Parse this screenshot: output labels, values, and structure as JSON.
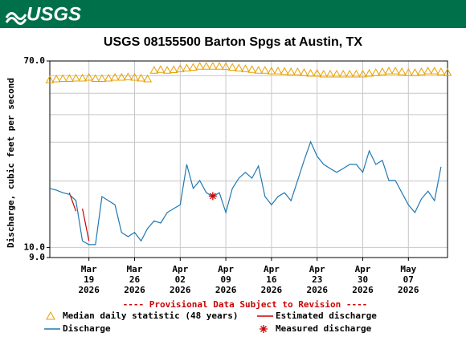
{
  "logo": "USGS",
  "chart_data": {
    "type": "line",
    "title": "USGS 08155500 Barton Spgs at Austin, TX",
    "y_label": "Discharge, cubic feet per second",
    "note": "---- Provisional Data Subject to Revision ----",
    "ylog": true,
    "grid": true,
    "ylim": [
      9,
      70
    ],
    "yticks": [
      {
        "value": 9,
        "label": "9.0"
      },
      {
        "value": 10,
        "label": "10.0"
      },
      {
        "value": 70,
        "label": "70.0"
      }
    ],
    "ygrid": [
      20,
      30,
      40,
      50,
      60
    ],
    "xlim": [
      "2026-03-13",
      "2026-05-13"
    ],
    "xticks": [
      {
        "value": "2026-03-19",
        "label": [
          "Mar",
          "19",
          "2026"
        ]
      },
      {
        "value": "2026-03-26",
        "label": [
          "Mar",
          "26",
          "2026"
        ]
      },
      {
        "value": "2026-04-02",
        "label": [
          "Apr",
          "02",
          "2026"
        ]
      },
      {
        "value": "2026-04-09",
        "label": [
          "Apr",
          "09",
          "2026"
        ]
      },
      {
        "value": "2026-04-16",
        "label": [
          "Apr",
          "16",
          "2026"
        ]
      },
      {
        "value": "2026-04-23",
        "label": [
          "Apr",
          "23",
          "2026"
        ]
      },
      {
        "value": "2026-04-30",
        "label": [
          "Apr",
          "30",
          "2026"
        ]
      },
      {
        "value": "2026-05-07",
        "label": [
          "May",
          "07",
          "2026"
        ]
      }
    ],
    "series": [
      {
        "name": "Median daily statistic (48 years)",
        "color": "#e8a000",
        "style": "triangle",
        "x": [
          "2026-03-13",
          "2026-03-14",
          "2026-03-15",
          "2026-03-16",
          "2026-03-17",
          "2026-03-18",
          "2026-03-19",
          "2026-03-20",
          "2026-03-21",
          "2026-03-22",
          "2026-03-23",
          "2026-03-24",
          "2026-03-25",
          "2026-03-26",
          "2026-03-27",
          "2026-03-28",
          "2026-03-29",
          "2026-03-30",
          "2026-03-31",
          "2026-04-01",
          "2026-04-02",
          "2026-04-03",
          "2026-04-04",
          "2026-04-05",
          "2026-04-06",
          "2026-04-07",
          "2026-04-08",
          "2026-04-09",
          "2026-04-10",
          "2026-04-11",
          "2026-04-12",
          "2026-04-13",
          "2026-04-14",
          "2026-04-15",
          "2026-04-16",
          "2026-04-17",
          "2026-04-18",
          "2026-04-19",
          "2026-04-20",
          "2026-04-21",
          "2026-04-22",
          "2026-04-23",
          "2026-04-24",
          "2026-04-25",
          "2026-04-26",
          "2026-04-27",
          "2026-04-28",
          "2026-04-29",
          "2026-04-30",
          "2026-05-01",
          "2026-05-02",
          "2026-05-03",
          "2026-05-04",
          "2026-05-05",
          "2026-05-06",
          "2026-05-07",
          "2026-05-08",
          "2026-05-09",
          "2026-05-10",
          "2026-05-11",
          "2026-05-12",
          "2026-05-13"
        ],
        "values": [
          57.5,
          58.0,
          58.3,
          58.3,
          58.5,
          58.5,
          59.0,
          58.3,
          58.3,
          58.5,
          59.0,
          59.0,
          59.3,
          59.0,
          58.5,
          58.0,
          63.5,
          64.0,
          63.5,
          63.9,
          64.5,
          65.0,
          65.5,
          66.2,
          66.2,
          66.2,
          66.2,
          66.0,
          65.5,
          65.0,
          64.5,
          64.0,
          63.5,
          63.5,
          63.0,
          63.0,
          62.8,
          62.5,
          62.5,
          62.0,
          61.5,
          61.5,
          61.0,
          61.0,
          61.0,
          61.0,
          61.0,
          61.0,
          61.0,
          61.5,
          62.0,
          62.5,
          63.0,
          63.0,
          62.5,
          62.0,
          62.0,
          62.5,
          63.0,
          63.0,
          62.5,
          62.0
        ]
      },
      {
        "name": "Estimated discharge",
        "color": "#cc0000",
        "style": "line",
        "x": [
          "2026-03-16",
          "2026-03-17",
          null,
          "2026-03-18",
          "2026-03-19"
        ],
        "values": [
          17.7,
          14.6,
          null,
          15.0,
          10.7
        ]
      },
      {
        "name": "Discharge",
        "color": "#1f78b4",
        "style": "line",
        "x": [
          "2026-03-13",
          "2026-03-14",
          "2026-03-15",
          "2026-03-16",
          "2026-03-17",
          "2026-03-18",
          "2026-03-19",
          "2026-03-20",
          "2026-03-21",
          "2026-03-22",
          "2026-03-23",
          "2026-03-24",
          "2026-03-25",
          "2026-03-26",
          "2026-03-27",
          "2026-03-28",
          "2026-03-29",
          "2026-03-30",
          "2026-03-31",
          "2026-04-01",
          "2026-04-02",
          "2026-04-03",
          "2026-04-04",
          "2026-04-05",
          "2026-04-06",
          "2026-04-07",
          "2026-04-08",
          "2026-04-09",
          "2026-04-10",
          "2026-04-11",
          "2026-04-12",
          "2026-04-13",
          "2026-04-14",
          "2026-04-15",
          "2026-04-16",
          "2026-04-17",
          "2026-04-18",
          "2026-04-19",
          "2026-04-20",
          "2026-04-21",
          "2026-04-22",
          "2026-04-23",
          "2026-04-24",
          "2026-04-25",
          "2026-04-26",
          "2026-04-27",
          "2026-04-28",
          "2026-04-29",
          "2026-04-30",
          "2026-05-01",
          "2026-05-02",
          "2026-05-03",
          "2026-05-04",
          "2026-05-05",
          "2026-05-06",
          "2026-05-07",
          "2026-05-08",
          "2026-05-09",
          "2026-05-10",
          "2026-05-11",
          "2026-05-12"
        ],
        "values": [
          18.5,
          18.2,
          17.7,
          17.4,
          16.3,
          10.7,
          10.3,
          10.3,
          17.0,
          16.3,
          15.6,
          11.7,
          11.2,
          11.7,
          10.7,
          12.2,
          13.2,
          12.9,
          14.4,
          15.0,
          15.6,
          23.8,
          18.5,
          20.1,
          17.7,
          17.0,
          17.7,
          14.4,
          18.5,
          20.6,
          21.9,
          20.6,
          23.4,
          17.0,
          15.6,
          17.0,
          17.7,
          16.3,
          20.1,
          24.8,
          30.1,
          25.9,
          23.8,
          22.8,
          21.9,
          22.8,
          23.8,
          23.8,
          21.9,
          27.4,
          23.8,
          24.8,
          20.1,
          20.1,
          17.7,
          15.6,
          14.4,
          16.6,
          18.0,
          16.3,
          23.2
        ]
      },
      {
        "name": "Measured discharge",
        "color": "#cc0000",
        "style": "star",
        "x": [
          "2026-04-07"
        ],
        "values": [
          17.1
        ]
      }
    ]
  }
}
